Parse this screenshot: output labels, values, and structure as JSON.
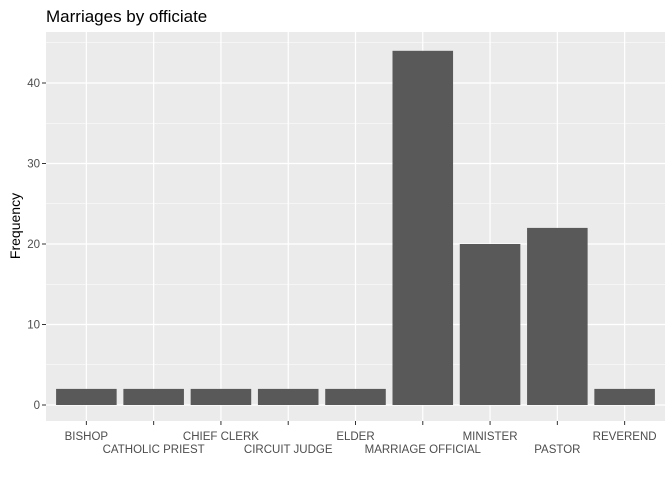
{
  "chart_data": {
    "type": "bar",
    "title": "Marriages by officiate",
    "xlabel": "",
    "ylabel": "Frequency",
    "categories": [
      "BISHOP",
      "CATHOLIC PRIEST",
      "CHIEF CLERK",
      "CIRCUIT JUDGE",
      "ELDER",
      "MARRIAGE OFFICIAL",
      "MINISTER",
      "PASTOR",
      "REVEREND"
    ],
    "values": [
      2,
      2,
      2,
      2,
      2,
      44,
      20,
      22,
      2
    ],
    "ylim": [
      0,
      46.2
    ],
    "yticks": [
      0,
      10,
      20,
      30,
      40
    ],
    "grid": true,
    "legend": "none",
    "colors": {
      "bar": "#595959",
      "panel": "#ebebeb",
      "grid": "#ffffff"
    }
  }
}
